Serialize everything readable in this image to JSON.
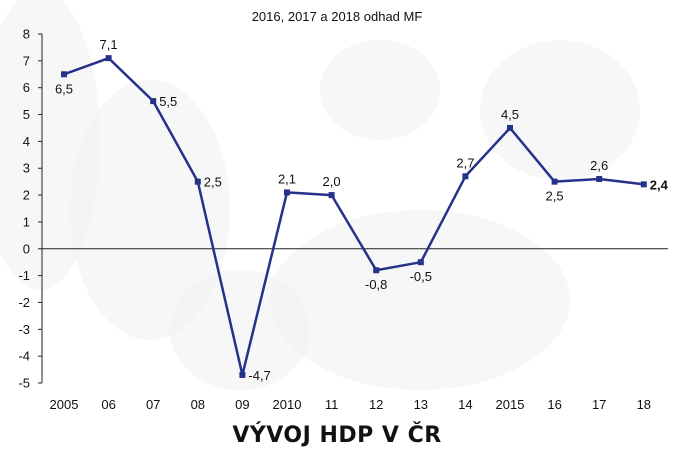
{
  "chart_data": {
    "type": "line",
    "title": "VÝVOJ HDP V ČR",
    "subtitle": "2016, 2017 a 2018 odhad MF",
    "categories": [
      "2005",
      "06",
      "07",
      "08",
      "09",
      "2010",
      "11",
      "12",
      "13",
      "14",
      "2015",
      "16",
      "17",
      "18"
    ],
    "series": [
      {
        "values": [
          6.5,
          7.1,
          5.5,
          2.5,
          -4.7,
          2.1,
          2.0,
          -0.8,
          -0.5,
          2.7,
          4.5,
          2.5,
          2.6,
          2.4
        ],
        "labels": [
          "6,5",
          "7,1",
          "5,5",
          "2,5",
          "-4,7",
          "2,1",
          "2,0",
          "-0,8",
          "-0,5",
          "2,7",
          "4,5",
          "2,5",
          "2,6",
          "2,4"
        ]
      }
    ],
    "y_ticks": [
      "8",
      "7",
      "6",
      "5",
      "4",
      "3",
      "2",
      "1",
      "0",
      "-1",
      "-2",
      "-3",
      "-4",
      "-5"
    ],
    "ylim": [
      -5,
      8
    ],
    "grid": false,
    "line_color": "#26318a"
  }
}
